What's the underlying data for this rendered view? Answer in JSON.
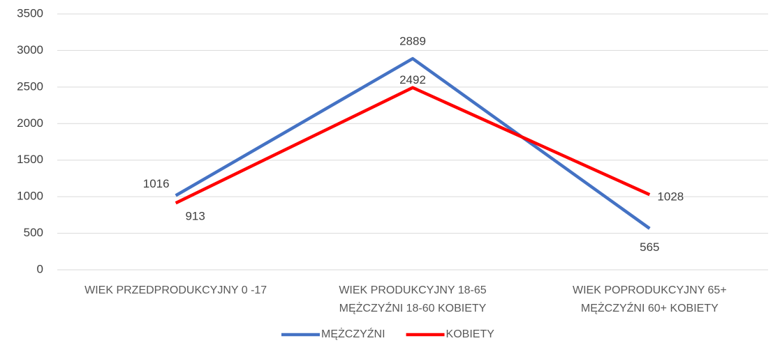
{
  "chart_data": {
    "type": "line",
    "categories": [
      "WIEK PRZEDPRODUKCYJNY 0 -17",
      "WIEK PRODUKCYJNY 18-65\nMĘŻCZYŹNI 18-60 KOBIETY",
      "WIEK POPRODUKCYJNY 65+\nMĘŻCZYŹNI 60+ KOBIETY"
    ],
    "series": [
      {
        "name": "MĘŻCZYŹNI",
        "color": "#4472c4",
        "values": [
          1016,
          2889,
          565
        ]
      },
      {
        "name": "KOBIETY",
        "color": "#ff0000",
        "values": [
          913,
          2492,
          1028
        ]
      }
    ],
    "ylim": [
      0,
      3500
    ],
    "yticks": [
      0,
      500,
      1000,
      1500,
      2000,
      2500,
      3000,
      3500
    ],
    "grid": true,
    "legend": "bottom"
  }
}
